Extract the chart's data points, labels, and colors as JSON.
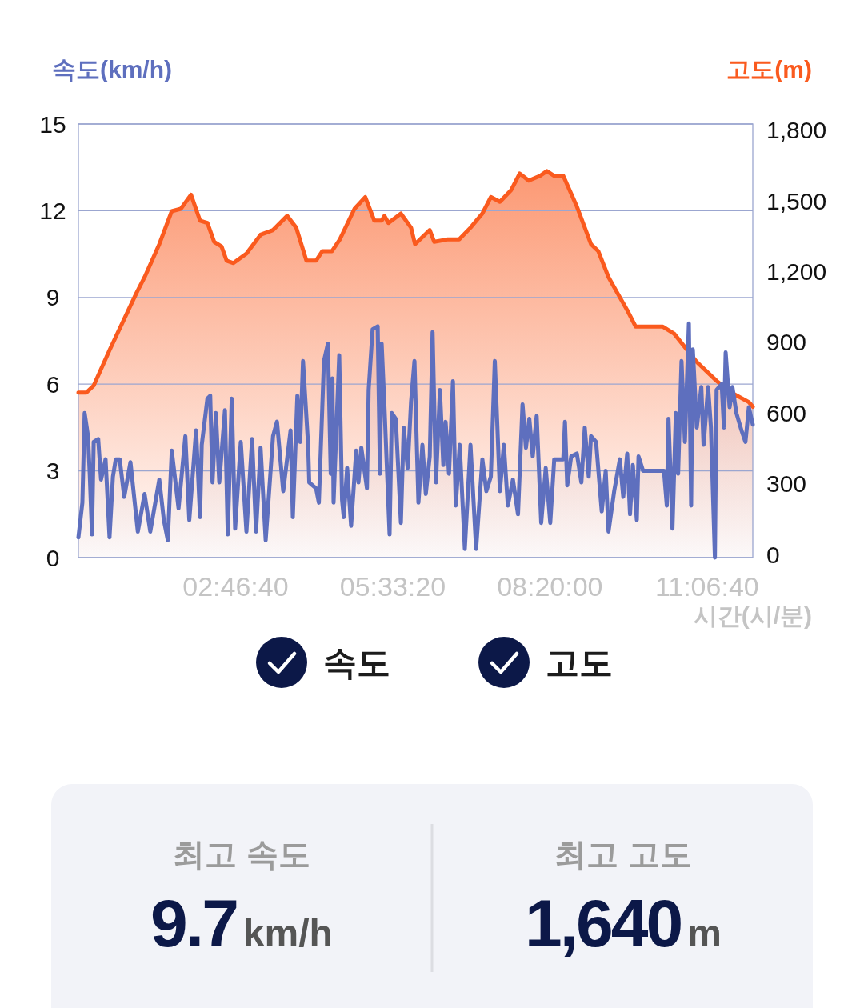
{
  "chart_data": {
    "type": "area",
    "ylabel": "속도(km/h)",
    "y2label": "고도(m)",
    "xlabel": "시간(시/분)",
    "xlim": [
      0,
      11.92
    ],
    "xticks": [
      {
        "value": 2.7778,
        "label": "02:46:40"
      },
      {
        "value": 5.5556,
        "label": "05:33:20"
      },
      {
        "value": 8.3333,
        "label": "08:20:00"
      },
      {
        "value": 11.1111,
        "label": "11:06:40"
      }
    ],
    "ylim": [
      0,
      15
    ],
    "yticks": [
      0,
      3,
      6,
      9,
      12,
      15
    ],
    "y2lim": [
      0,
      1840
    ],
    "y2ticks": [
      0,
      300,
      600,
      900,
      {
        "value": 1200,
        "label": "1,200"
      },
      {
        "value": 1500,
        "label": "1,500"
      },
      {
        "value": 1800,
        "label": "1,800"
      }
    ],
    "grid": "y",
    "legend": "bottom",
    "series": [
      {
        "name": "속도",
        "color": "#5e6fbe",
        "x": [
          0,
          0.07,
          0.11,
          0.17,
          0.2,
          0.24,
          0.27,
          0.35,
          0.4,
          0.48,
          0.55,
          0.61,
          0.66,
          0.73,
          0.81,
          0.92,
          1.05,
          1.17,
          1.27,
          1.43,
          1.51,
          1.58,
          1.65,
          1.77,
          1.89,
          1.96,
          2.08,
          2.15,
          2.18,
          2.28,
          2.33,
          2.37,
          2.43,
          2.49,
          2.59,
          2.64,
          2.71,
          2.77,
          2.87,
          2.97,
          3.07,
          3.14,
          3.22,
          3.31,
          3.44,
          3.51,
          3.62,
          3.75,
          3.79,
          3.87,
          3.92,
          3.97,
          4.06,
          4.08,
          4.2,
          4.25,
          4.34,
          4.41,
          4.46,
          4.49,
          4.51,
          4.61,
          4.66,
          4.69,
          4.75,
          4.82,
          4.91,
          4.95,
          5,
          5.1,
          5.13,
          5.2,
          5.29,
          5.33,
          5.36,
          5.41,
          5.5,
          5.54,
          5.61,
          5.7,
          5.75,
          5.82,
          5.88,
          5.94,
          6.01,
          6.08,
          6.14,
          6.21,
          6.26,
          6.32,
          6.39,
          6.45,
          6.49,
          6.55,
          6.62,
          6.67,
          6.74,
          6.83,
          6.93,
          7.03,
          7.14,
          7.21,
          7.29,
          7.36,
          7.45,
          7.52,
          7.59,
          7.68,
          7.77,
          7.85,
          7.91,
          7.97,
          8.03,
          8.1,
          8.18,
          8.26,
          8.34,
          8.41,
          8.57,
          8.6,
          8.64,
          8.71,
          8.81,
          8.89,
          8.95,
          9.02,
          9.06,
          9.15,
          9.25,
          9.32,
          9.37,
          9.47,
          9.57,
          9.63,
          9.7,
          9.75,
          9.8,
          9.87,
          9.9,
          9.98,
          10.35,
          10.4,
          10.43,
          10.5,
          10.56,
          10.6,
          10.66,
          10.72,
          10.79,
          10.83,
          10.86,
          10.93,
          11.01,
          11.05,
          11.13,
          11.18,
          11.25,
          11.28,
          11.37,
          11.41,
          11.44,
          11.51,
          11.56,
          11.63,
          11.72,
          11.79,
          11.85,
          11.92
        ],
        "values": [
          0.7,
          1.9,
          5.0,
          4.2,
          2.9,
          0.8,
          4.0,
          4.1,
          2.7,
          3.4,
          0.7,
          2.8,
          3.4,
          3.4,
          2.1,
          3.3,
          0.9,
          2.2,
          0.9,
          2.7,
          1.3,
          0.6,
          3.7,
          1.7,
          4.2,
          1.3,
          4.4,
          1.4,
          3.9,
          5.5,
          5.6,
          2.6,
          5.0,
          2.6,
          5.1,
          0.8,
          5.5,
          1.0,
          4.0,
          0.9,
          4.1,
          0.9,
          3.8,
          0.6,
          4.2,
          4.7,
          2.3,
          4.4,
          1.4,
          5.6,
          4.0,
          6.8,
          3.9,
          2.6,
          2.4,
          1.9,
          6.8,
          7.4,
          2.9,
          6.2,
          1.9,
          7.0,
          2.0,
          1.4,
          3.1,
          1.1,
          3.7,
          2.6,
          3.8,
          2.4,
          5.8,
          7.9,
          8.0,
          2.9,
          7.4,
          5.2,
          0.8,
          5.0,
          4.8,
          1.2,
          4.5,
          3.1,
          5.4,
          6.8,
          1.9,
          3.9,
          2.2,
          3.5,
          7.8,
          2.6,
          5.8,
          3.2,
          4.7,
          2.9,
          6.1,
          1.8,
          3.9,
          0.3,
          3.9,
          0.3,
          3.4,
          2.3,
          2.8,
          6.8,
          2.3,
          3.9,
          1.8,
          2.7,
          1.5,
          5.3,
          3.8,
          4.8,
          3.5,
          4.9,
          1.2,
          3.1,
          1.2,
          3.4,
          3.4,
          4.7,
          2.5,
          3.5,
          3.6,
          2.6,
          4.5,
          2.8,
          4.2,
          4.0,
          1.6,
          3.0,
          0.9,
          2.3,
          3.4,
          2.1,
          3.6,
          1.5,
          3.2,
          1.3,
          3.5,
          3.0,
          3.0,
          1.8,
          4.8,
          1.0,
          5.0,
          2.9,
          6.8,
          4.0,
          8.1,
          1.8,
          7.2,
          4.5,
          5.9,
          3.9,
          5.9,
          4.5,
          0,
          5.8,
          6.0,
          4.5,
          7.1,
          5.2,
          5.9,
          5.0,
          4.4,
          4.0,
          5.2,
          4.6
        ]
      },
      {
        "name": "고도",
        "axis": "y2",
        "color": "#fa5a1e",
        "x": [
          0,
          0.14,
          0.27,
          0.55,
          1.02,
          1.17,
          1.43,
          1.65,
          1.81,
          1.99,
          2.15,
          2.28,
          2.4,
          2.53,
          2.62,
          2.74,
          2.97,
          3.22,
          3.44,
          3.69,
          3.85,
          4.03,
          4.2,
          4.31,
          4.48,
          4.62,
          4.88,
          5.07,
          5.23,
          5.36,
          5.41,
          5.48,
          5.7,
          5.88,
          5.95,
          6.21,
          6.29,
          6.52,
          6.73,
          6.93,
          7.14,
          7.29,
          7.45,
          7.65,
          7.8,
          7.96,
          8.16,
          8.28,
          8.41,
          8.57,
          8.81,
          9.06,
          9.19,
          9.37,
          9.51,
          9.7,
          9.85,
          10.33,
          10.53,
          10.73,
          10.93,
          11.28,
          11.54,
          11.85,
          11.92
        ],
        "values": [
          700,
          700,
          730,
          880,
          1120,
          1190,
          1330,
          1470,
          1480,
          1540,
          1430,
          1420,
          1340,
          1320,
          1260,
          1250,
          1290,
          1370,
          1390,
          1450,
          1400,
          1260,
          1260,
          1300,
          1300,
          1350,
          1480,
          1530,
          1430,
          1430,
          1450,
          1420,
          1460,
          1400,
          1330,
          1390,
          1340,
          1350,
          1350,
          1400,
          1460,
          1530,
          1510,
          1560,
          1630,
          1600,
          1620,
          1640,
          1620,
          1620,
          1490,
          1330,
          1300,
          1190,
          1130,
          1050,
          980,
          980,
          950,
          890,
          830,
          750,
          700,
          660,
          640
        ]
      }
    ],
    "annotations": [
      "최고 속도",
      "9.7",
      "km/h",
      "최고 고도",
      "1,640",
      "m"
    ]
  }
}
